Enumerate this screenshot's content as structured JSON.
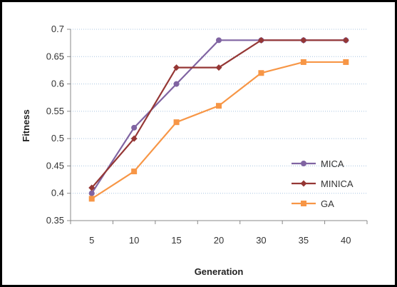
{
  "chart_data": {
    "type": "line",
    "title": "",
    "xlabel": "Generation",
    "ylabel": "Fitness",
    "categories": [
      "5",
      "10",
      "15",
      "20",
      "30",
      "35",
      "40"
    ],
    "ylim": [
      0.35,
      0.7
    ],
    "yticks": [
      "0.35",
      "0.4",
      "0.45",
      "0.5",
      "0.55",
      "0.6",
      "0.65",
      "0.7"
    ],
    "grid": "horizontal dotted",
    "legend_position": "right",
    "series": [
      {
        "name": "MICA",
        "color": "#8064A2",
        "marker": "circle",
        "values": [
          0.4,
          0.52,
          0.6,
          0.68,
          0.68,
          0.68,
          0.68
        ]
      },
      {
        "name": "MINICA",
        "color": "#953735",
        "marker": "diamond",
        "values": [
          0.41,
          0.5,
          0.63,
          0.63,
          0.68,
          0.68,
          0.68
        ]
      },
      {
        "name": "GA",
        "color": "#F79646",
        "marker": "square",
        "values": [
          0.39,
          0.44,
          0.53,
          0.56,
          0.62,
          0.64,
          0.64
        ]
      }
    ]
  }
}
